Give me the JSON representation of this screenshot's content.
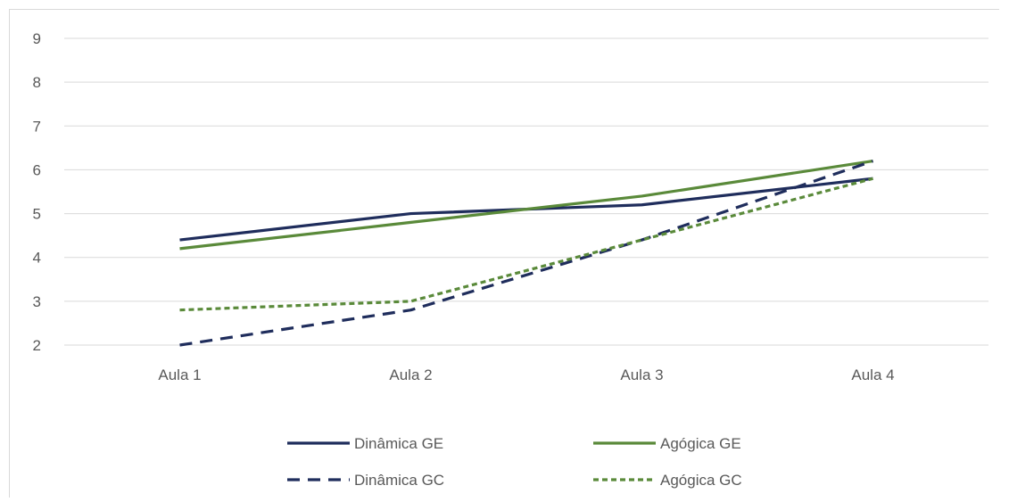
{
  "chart_data": {
    "type": "line",
    "title": "",
    "xlabel": "",
    "ylabel": "",
    "categories": [
      "Aula 1",
      "Aula 2",
      "Aula 3",
      "Aula 4"
    ],
    "ylim": [
      2,
      9
    ],
    "yticks": [
      2,
      3,
      4,
      5,
      6,
      7,
      8,
      9
    ],
    "grid": true,
    "legend_position": "bottom",
    "series": [
      {
        "name": "Dinâmica GE",
        "values": [
          4.4,
          5.0,
          5.2,
          5.8
        ],
        "color": "#1f2d5c",
        "dash": "solid"
      },
      {
        "name": "Agógica GE",
        "values": [
          4.2,
          4.8,
          5.4,
          6.2
        ],
        "color": "#5a8a3a",
        "dash": "solid"
      },
      {
        "name": "Dinâmica GC",
        "values": [
          2.0,
          2.8,
          4.4,
          6.2
        ],
        "color": "#1f2d5c",
        "dash": "dashed"
      },
      {
        "name": "Agógica GC",
        "values": [
          2.8,
          3.0,
          4.4,
          5.8
        ],
        "color": "#5a8a3a",
        "dash": "dotted"
      }
    ]
  }
}
